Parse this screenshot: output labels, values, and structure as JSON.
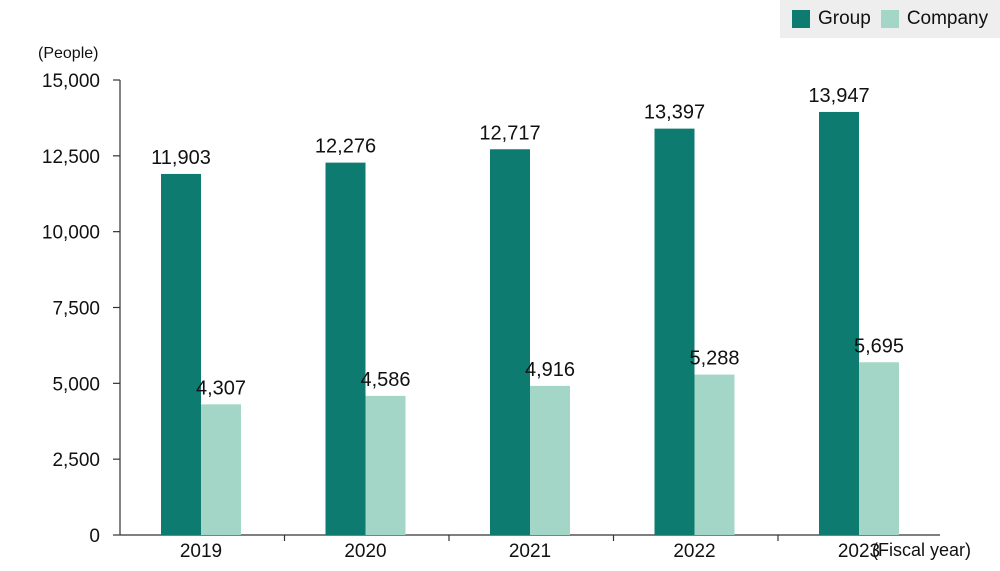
{
  "chart_data": {
    "type": "bar",
    "title": "",
    "xlabel": "(Fiscal year)",
    "ylabel": "(People)",
    "categories": [
      "2019",
      "2020",
      "2021",
      "2022",
      "2023"
    ],
    "series": [
      {
        "name": "Group",
        "color": "#0e7b71",
        "values": [
          11903,
          12276,
          12717,
          13397,
          13947
        ],
        "labels": [
          "11,903",
          "12,276",
          "12,717",
          "13,397",
          "13,947"
        ]
      },
      {
        "name": "Company",
        "color": "#a3d6c6",
        "values": [
          4307,
          4586,
          4916,
          5288,
          5695
        ],
        "labels": [
          "4,307",
          "4,586",
          "4,916",
          "5,288",
          "5,695"
        ]
      }
    ],
    "ylim": [
      0,
      15000
    ],
    "yticks": [
      0,
      2500,
      5000,
      7500,
      10000,
      12500,
      15000
    ],
    "ytick_labels": [
      "0",
      "2,500",
      "5,000",
      "7,500",
      "10,000",
      "12,500",
      "15,000"
    ],
    "grid": false,
    "legend_position": "top-right"
  }
}
